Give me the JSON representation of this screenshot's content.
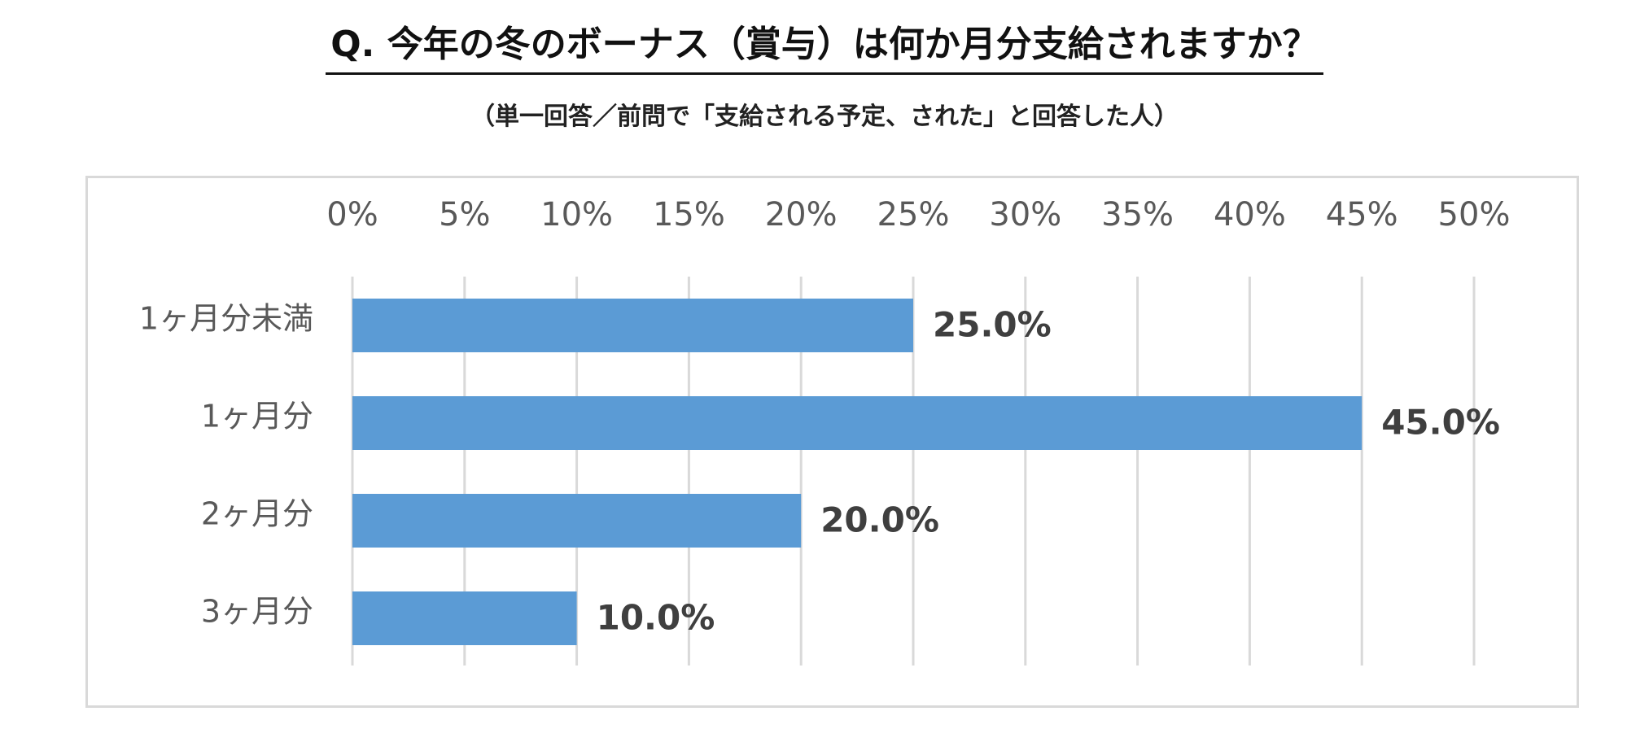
{
  "title": "Q. 今年の冬のボーナス（賞与）は何か月分支給されますか？",
  "subtitle": "（単一回答／前問で「支給される予定、された」と回答した人）",
  "colors": {
    "bar": "#5b9bd5",
    "grid": "#d9d9d9",
    "axis_text": "#595959",
    "value_text": "#3f3f3f"
  },
  "chart_data": {
    "type": "bar",
    "orientation": "horizontal",
    "categories": [
      "1ヶ月分未満",
      "1ヶ月分",
      "2ヶ月分",
      "3ヶ月分"
    ],
    "values": [
      25.0,
      45.0,
      20.0,
      10.0
    ],
    "value_labels": [
      "25.0%",
      "45.0%",
      "20.0%",
      "10.0%"
    ],
    "xlim": [
      0,
      50
    ],
    "xticks": [
      0,
      5,
      10,
      15,
      20,
      25,
      30,
      35,
      40,
      45,
      50
    ],
    "xtick_labels": [
      "0%",
      "5%",
      "10%",
      "15%",
      "20%",
      "25%",
      "30%",
      "35%",
      "40%",
      "45%",
      "50%"
    ],
    "xaxis_position": "top",
    "grid": true,
    "legend": false
  }
}
